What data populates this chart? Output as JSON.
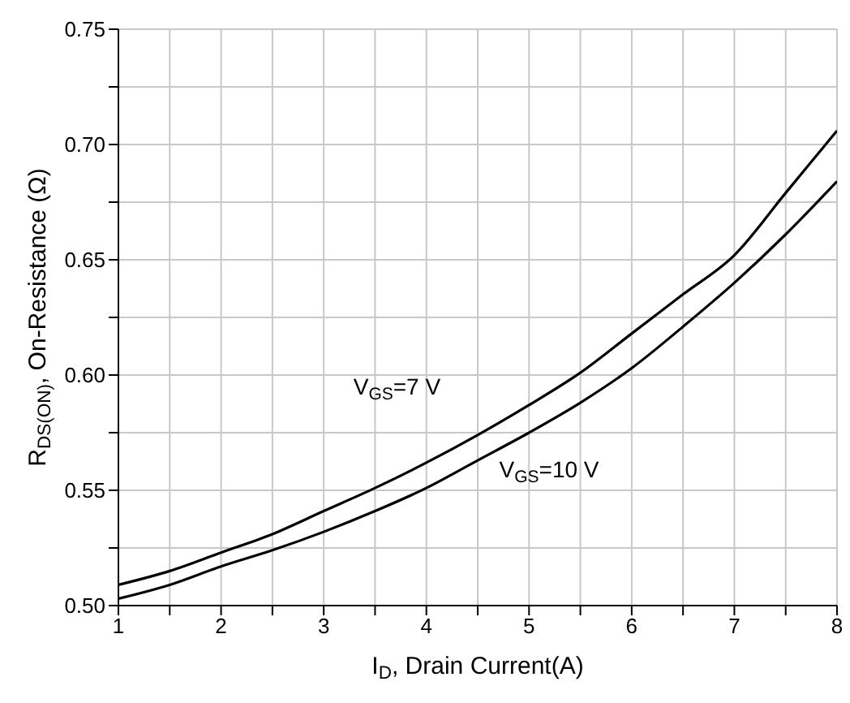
{
  "chart_data": {
    "type": "line",
    "xlabel": "I$_{D}$, Drain Current(A)",
    "ylabel": "R$_{DS(ON)}$, On-Resistance (Ω)",
    "x": [
      1,
      1.5,
      2,
      2.5,
      3,
      3.5,
      4,
      4.5,
      5,
      5.5,
      6,
      6.5,
      7,
      7.5,
      8
    ],
    "series": [
      {
        "name": "V$_{GS}$=7 V",
        "color": "#000000",
        "values": [
          0.509,
          0.515,
          0.523,
          0.531,
          0.541,
          0.551,
          0.562,
          0.574,
          0.587,
          0.601,
          0.618,
          0.635,
          0.652,
          0.679,
          0.706
        ]
      },
      {
        "name": "V$_{GS}$=10 V",
        "color": "#000000",
        "values": [
          0.503,
          0.509,
          0.517,
          0.524,
          0.532,
          0.541,
          0.551,
          0.563,
          0.575,
          0.588,
          0.603,
          0.621,
          0.64,
          0.661,
          0.684
        ]
      }
    ],
    "xlim": [
      1,
      8
    ],
    "xticks": [
      1,
      {
        "value": 1.5,
        "label": null
      },
      2,
      {
        "value": 2.5,
        "label": null
      },
      3,
      {
        "value": 3.5,
        "label": null
      },
      4,
      {
        "value": 4.5,
        "label": null
      },
      5,
      {
        "value": 5.5,
        "label": null
      },
      6,
      {
        "value": 6.5,
        "label": null
      },
      7,
      {
        "value": 7.5,
        "label": null
      },
      8
    ],
    "ylim": [
      0.5,
      0.75
    ],
    "yticks": [
      {
        "value": 0.5,
        "label": "0.50"
      },
      {
        "value": 0.525,
        "label": null
      },
      {
        "value": 0.55,
        "label": "0.55"
      },
      {
        "value": 0.575,
        "label": null
      },
      {
        "value": 0.6,
        "label": "0.60"
      },
      {
        "value": 0.625,
        "label": null
      },
      {
        "value": 0.65,
        "label": "0.65"
      },
      {
        "value": 0.675,
        "label": null
      },
      {
        "value": 0.7,
        "label": "0.70"
      },
      {
        "value": 0.725,
        "label": null
      },
      {
        "value": 0.75,
        "label": "0.75"
      }
    ],
    "grid": true,
    "legend": false,
    "marker": "none",
    "line_style": "solid"
  }
}
